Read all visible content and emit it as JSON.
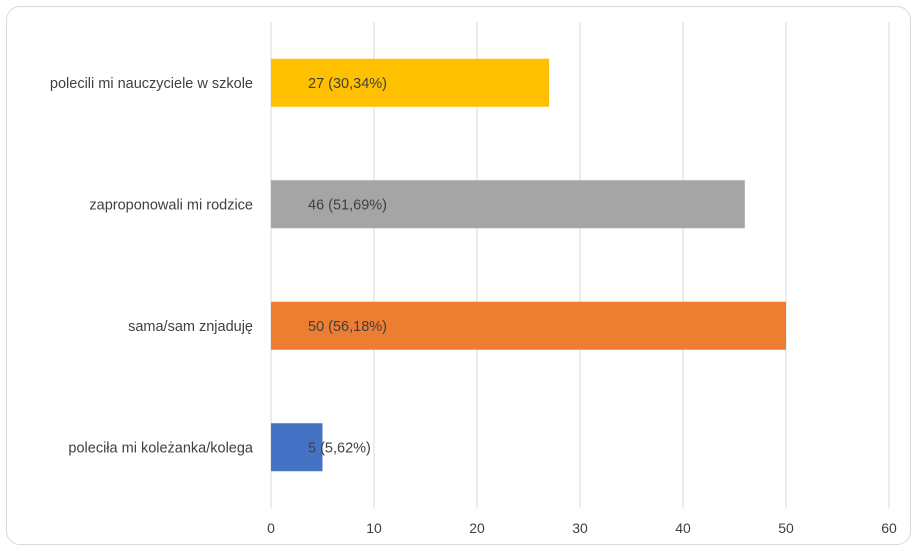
{
  "chart_data": {
    "type": "bar",
    "orientation": "horizontal",
    "title": "",
    "xlabel": "",
    "ylabel": "",
    "categories": [
      "polecili mi nauczyciele w szkole",
      "zaproponowali mi rodzice",
      "sama/sam znjaduję",
      "poleciła mi koleżanka/kolega"
    ],
    "values": [
      27,
      46,
      50,
      5
    ],
    "data_labels": [
      "27 (30,34%)",
      "46 (51,69%)",
      "50 (56,18%)",
      "5 (5,62%)"
    ],
    "colors": [
      "#FFC000",
      "#A5A5A5",
      "#ED7D31",
      "#4472C4"
    ],
    "xlim": [
      0,
      60
    ],
    "xticks": [
      0,
      10,
      20,
      30,
      40,
      50,
      60
    ],
    "xtick_labels": [
      "0",
      "10",
      "20",
      "30",
      "40",
      "50",
      "60"
    ],
    "grid": "vertical",
    "gridline_color": "#d9d9d9",
    "legend": "none"
  }
}
